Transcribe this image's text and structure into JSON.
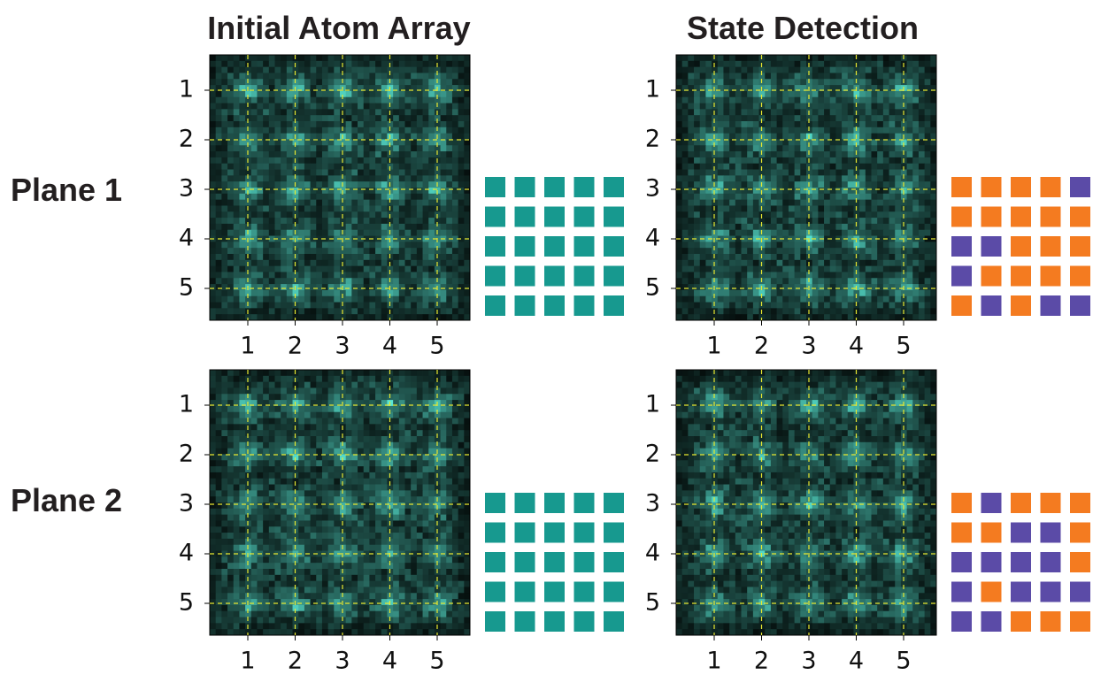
{
  "columns": [
    "Initial Atom Array",
    "State Detection"
  ],
  "rows": [
    "Plane 1",
    "Plane 2"
  ],
  "ticks": [
    1,
    2,
    3,
    4,
    5
  ],
  "grids": [
    [
      [
        [
          "#17998f",
          "#17998f",
          "#17998f",
          "#17998f",
          "#17998f"
        ],
        [
          "#17998f",
          "#17998f",
          "#17998f",
          "#17998f",
          "#17998f"
        ],
        [
          "#17998f",
          "#17998f",
          "#17998f",
          "#17998f",
          "#17998f"
        ],
        [
          "#17998f",
          "#17998f",
          "#17998f",
          "#17998f",
          "#17998f"
        ],
        [
          "#17998f",
          "#17998f",
          "#17998f",
          "#17998f",
          "#17998f"
        ]
      ],
      [
        [
          "#f47b20",
          "#f47b20",
          "#f47b20",
          "#f47b20",
          "#5b4ba7"
        ],
        [
          "#f47b20",
          "#f47b20",
          "#f47b20",
          "#f47b20",
          "#f47b20"
        ],
        [
          "#5b4ba7",
          "#5b4ba7",
          "#f47b20",
          "#f47b20",
          "#f47b20"
        ],
        [
          "#5b4ba7",
          "#f47b20",
          "#f47b20",
          "#f47b20",
          "#f47b20"
        ],
        [
          "#f47b20",
          "#5b4ba7",
          "#f47b20",
          "#5b4ba7",
          "#5b4ba7"
        ]
      ]
    ],
    [
      [
        [
          "#17998f",
          "#17998f",
          "#17998f",
          "#17998f",
          "#17998f"
        ],
        [
          "#17998f",
          "#17998f",
          "#17998f",
          "#17998f",
          "#17998f"
        ],
        [
          "#17998f",
          "#17998f",
          "#17998f",
          "#17998f",
          "#17998f"
        ],
        [
          "#17998f",
          "#17998f",
          "#17998f",
          "#17998f",
          "#17998f"
        ],
        [
          "#17998f",
          "#17998f",
          "#17998f",
          "#17998f",
          "#17998f"
        ]
      ],
      [
        [
          "#f47b20",
          "#5b4ba7",
          "#f47b20",
          "#f47b20",
          "#f47b20"
        ],
        [
          "#f47b20",
          "#f47b20",
          "#5b4ba7",
          "#5b4ba7",
          "#f47b20"
        ],
        [
          "#5b4ba7",
          "#5b4ba7",
          "#5b4ba7",
          "#5b4ba7",
          "#f47b20"
        ],
        [
          "#5b4ba7",
          "#f47b20",
          "#5b4ba7",
          "#5b4ba7",
          "#5b4ba7"
        ],
        [
          "#5b4ba7",
          "#5b4ba7",
          "#f47b20",
          "#f47b20",
          "#f47b20"
        ]
      ]
    ]
  ]
}
